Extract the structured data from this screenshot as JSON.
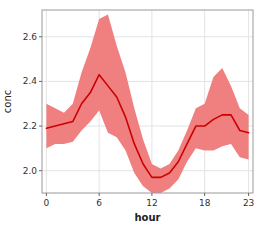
{
  "chart_data": {
    "type": "line",
    "x": [
      0,
      1,
      2,
      3,
      4,
      5,
      6,
      7,
      8,
      9,
      10,
      11,
      12,
      13,
      14,
      15,
      16,
      17,
      18,
      19,
      20,
      21,
      22,
      23
    ],
    "series": [
      {
        "type": "band",
        "color": "#f08080",
        "upper": [
          2.3,
          2.28,
          2.26,
          2.3,
          2.44,
          2.55,
          2.68,
          2.7,
          2.56,
          2.44,
          2.28,
          2.14,
          2.03,
          2.01,
          2.03,
          2.09,
          2.18,
          2.28,
          2.3,
          2.42,
          2.46,
          2.38,
          2.28,
          2.25
        ],
        "lower": [
          2.1,
          2.12,
          2.12,
          2.13,
          2.18,
          2.22,
          2.27,
          2.17,
          2.15,
          2.09,
          1.99,
          1.93,
          1.9,
          1.9,
          1.92,
          1.96,
          2.04,
          2.1,
          2.09,
          2.09,
          2.11,
          2.12,
          2.06,
          2.05
        ]
      },
      {
        "type": "line",
        "color": "#cc0000",
        "values": [
          2.19,
          2.2,
          2.21,
          2.22,
          2.3,
          2.35,
          2.43,
          2.38,
          2.33,
          2.24,
          2.12,
          2.03,
          1.97,
          1.97,
          1.99,
          2.04,
          2.12,
          2.2,
          2.2,
          2.23,
          2.25,
          2.25,
          2.18,
          2.17
        ]
      }
    ],
    "xlabel": "hour",
    "ylabel": "conc",
    "xlim": [
      -0.5,
      23.5
    ],
    "ylim": [
      1.9,
      2.72
    ],
    "xticks": [
      0,
      6,
      12,
      18,
      23
    ],
    "yticks": [
      {
        "value": 2.0,
        "label": "2.0"
      },
      2.2,
      2.4,
      2.6
    ],
    "grid": true
  }
}
